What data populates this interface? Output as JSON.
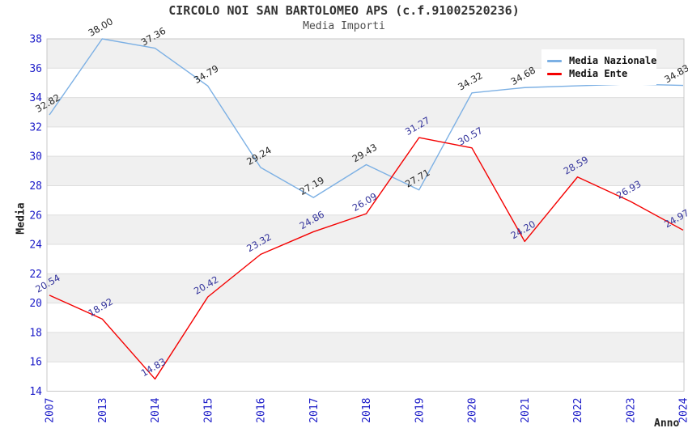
{
  "chart_data": {
    "type": "line",
    "title": "CIRCOLO NOI SAN BARTOLOMEO APS (c.f.91002520236)",
    "subtitle": "Media Importi",
    "xlabel": "Anno",
    "ylabel": "Media",
    "ylim": [
      14,
      38
    ],
    "y_tick_step": 2,
    "grid": "horizontal-bands",
    "legend_position": "top-right",
    "categories": [
      "2007",
      "2013",
      "2014",
      "2015",
      "2016",
      "2017",
      "2018",
      "2019",
      "2020",
      "2021",
      "2022",
      "2023",
      "2024"
    ],
    "series": [
      {
        "name": "Media Nazionale",
        "color": "#7CB0E4",
        "label_color": "#262626",
        "values": [
          32.82,
          38.0,
          37.36,
          34.79,
          29.24,
          27.19,
          29.43,
          27.71,
          34.32,
          34.68,
          34.8,
          34.92,
          34.83
        ],
        "labels": [
          "32.82",
          "38.00",
          "37.36",
          "34.79",
          "29.24",
          "27.19",
          "29.43",
          "27.71",
          "34.32",
          "34.68",
          null,
          null,
          "34.83"
        ]
      },
      {
        "name": "Media Ente",
        "color": "#F40000",
        "label_color": "#32329B",
        "values": [
          20.54,
          18.92,
          14.83,
          20.42,
          23.32,
          24.86,
          26.09,
          31.27,
          30.57,
          24.2,
          28.59,
          26.93,
          24.97
        ],
        "labels": [
          "20.54",
          "18.92",
          "14.83",
          "20.42",
          "23.32",
          "24.86",
          "26.09",
          "31.27",
          "30.57",
          "24.20",
          "28.59",
          "26.93",
          "24.97"
        ]
      }
    ],
    "styles": {
      "band_fill": "#F0F0F0",
      "gridline": "#DEDEDE",
      "plot_border": "#C8C8C8",
      "tick_text": "#1C1CC8"
    }
  }
}
